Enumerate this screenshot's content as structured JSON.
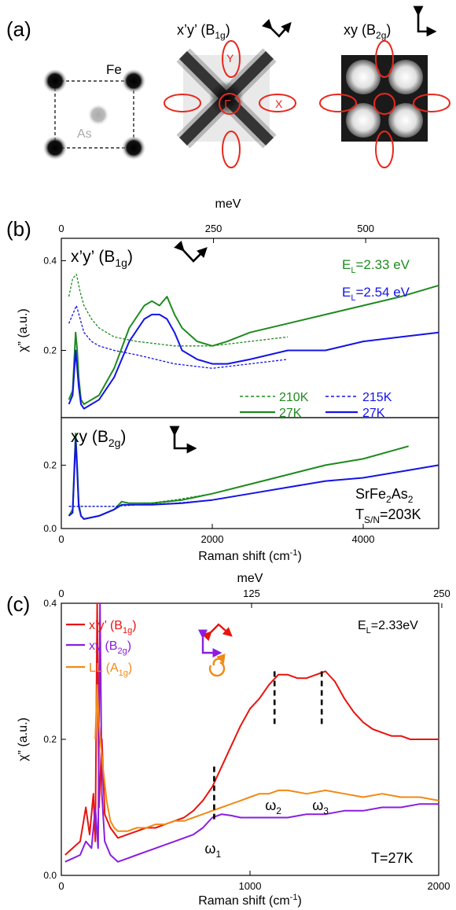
{
  "panel_a": {
    "label": "(a)",
    "lattice": {
      "fe_label": "Fe",
      "as_label": "As"
    },
    "map_b1g": {
      "title_main": "x’y’ (B",
      "title_sub": "1g",
      "title_end": ")",
      "pocket_y": "Y",
      "pocket_x": "X",
      "pocket_gamma": "Γ"
    },
    "map_b2g": {
      "title_main": "xy (B",
      "title_sub": "2g",
      "title_end": ")"
    },
    "arrow_color": "#000000",
    "pocket_color": "#e8281e"
  },
  "colors": {
    "green": "#1f8a1f",
    "blue": "#1414e6",
    "red": "#e8140f",
    "purple": "#8a1ee0",
    "orange": "#f08a14"
  },
  "chart_data": [
    {
      "id": "b_top",
      "type": "line",
      "panel_label": "(b)",
      "top_axis_label": "meV",
      "top_ticks": [
        "0",
        "250",
        "500"
      ],
      "ylabel": "χ” (a.u.)",
      "ylim": [
        0.05,
        0.45
      ],
      "xlim": [
        0,
        5000
      ],
      "yticks": [
        "0.2",
        "0.4"
      ],
      "title_main": "x’y’ (B",
      "title_sub": "1g",
      "title_end": ")",
      "annotations": [
        {
          "text": "E",
          "sub": "L",
          "rest": "=2.33 eV",
          "color": "green"
        },
        {
          "text": "E",
          "sub": "L",
          "rest": "=2.54 eV",
          "color": "blue"
        }
      ],
      "legend": [
        {
          "label": "210K",
          "color": "green",
          "dash": true
        },
        {
          "label": "215K",
          "color": "blue",
          "dash": true
        },
        {
          "label": "27K",
          "color": "green",
          "dash": false
        },
        {
          "label": "27K",
          "color": "blue",
          "dash": false
        }
      ],
      "series": [
        {
          "color": "green",
          "dash": false,
          "x": [
            100,
            150,
            190,
            210,
            230,
            260,
            300,
            400,
            500,
            700,
            900,
            1100,
            1200,
            1300,
            1400,
            1500,
            1600,
            1800,
            2000,
            2200,
            2500,
            3000,
            3500,
            4000,
            4500,
            5000
          ],
          "y": [
            0.09,
            0.11,
            0.24,
            0.2,
            0.14,
            0.09,
            0.08,
            0.09,
            0.1,
            0.16,
            0.25,
            0.3,
            0.31,
            0.3,
            0.32,
            0.28,
            0.25,
            0.22,
            0.21,
            0.22,
            0.24,
            0.26,
            0.28,
            0.3,
            0.32,
            0.345
          ]
        },
        {
          "color": "blue",
          "dash": false,
          "x": [
            100,
            150,
            190,
            210,
            230,
            260,
            300,
            400,
            500,
            700,
            900,
            1100,
            1200,
            1300,
            1400,
            1500,
            1600,
            1800,
            2000,
            2200,
            2500,
            3000,
            3500,
            4000,
            4500,
            5000
          ],
          "y": [
            0.08,
            0.1,
            0.2,
            0.16,
            0.12,
            0.08,
            0.07,
            0.08,
            0.09,
            0.14,
            0.22,
            0.27,
            0.28,
            0.28,
            0.27,
            0.24,
            0.2,
            0.18,
            0.17,
            0.17,
            0.18,
            0.2,
            0.2,
            0.22,
            0.23,
            0.24
          ]
        },
        {
          "color": "green",
          "dash": true,
          "x": [
            100,
            150,
            200,
            250,
            300,
            400,
            500,
            700,
            1000,
            1500,
            2000,
            2500,
            3000
          ],
          "y": [
            0.32,
            0.36,
            0.37,
            0.33,
            0.3,
            0.27,
            0.25,
            0.23,
            0.22,
            0.21,
            0.21,
            0.22,
            0.23
          ]
        },
        {
          "color": "blue",
          "dash": true,
          "x": [
            100,
            150,
            200,
            250,
            300,
            400,
            500,
            700,
            1000,
            1500,
            2000,
            2500,
            3000
          ],
          "y": [
            0.26,
            0.28,
            0.3,
            0.27,
            0.24,
            0.22,
            0.21,
            0.2,
            0.19,
            0.17,
            0.16,
            0.17,
            0.18
          ]
        }
      ]
    },
    {
      "id": "b_bottom",
      "type": "line",
      "xlabel": "Raman shift (cm⁻¹)",
      "xlabel_main": "Raman shift (cm",
      "xlabel_sup": "-1",
      "xlabel_end": ")",
      "xticks": [
        "0",
        "2000",
        "4000"
      ],
      "ylim": [
        0.0,
        0.35
      ],
      "xlim": [
        0,
        5000
      ],
      "yticks": [
        "0.0",
        "0.2"
      ],
      "title_main": "xy (B",
      "title_sub": "2g",
      "title_end": ")",
      "material_main": "SrFe",
      "material_sub1": "2",
      "material_mid": "As",
      "material_sub2": "2",
      "tsn_main": "T",
      "tsn_sub": "S/N",
      "tsn_end": "=203K",
      "series": [
        {
          "color": "green",
          "dash": false,
          "x": [
            100,
            150,
            190,
            210,
            230,
            260,
            300,
            400,
            500,
            700,
            800,
            900,
            1200,
            1600,
            2000,
            2500,
            3000,
            3500,
            4000,
            4600
          ],
          "y": [
            0.04,
            0.06,
            0.3,
            0.2,
            0.08,
            0.04,
            0.03,
            0.035,
            0.04,
            0.06,
            0.085,
            0.08,
            0.08,
            0.09,
            0.11,
            0.14,
            0.17,
            0.2,
            0.22,
            0.26
          ]
        },
        {
          "color": "blue",
          "dash": false,
          "x": [
            100,
            150,
            190,
            210,
            230,
            260,
            300,
            400,
            500,
            700,
            800,
            900,
            1200,
            1600,
            2000,
            2500,
            3000,
            3500,
            4000,
            4500,
            5000
          ],
          "y": [
            0.04,
            0.05,
            0.28,
            0.18,
            0.07,
            0.04,
            0.03,
            0.035,
            0.04,
            0.06,
            0.075,
            0.075,
            0.075,
            0.08,
            0.09,
            0.11,
            0.13,
            0.15,
            0.16,
            0.18,
            0.2
          ]
        },
        {
          "color": "green",
          "dash": true,
          "x": [
            100,
            200,
            400,
            700,
            1000,
            1500,
            2000,
            2500,
            3000,
            3500,
            4000,
            4600
          ],
          "y": [
            0.07,
            0.07,
            0.07,
            0.07,
            0.075,
            0.09,
            0.11,
            0.14,
            0.17,
            0.2,
            0.22,
            0.26
          ]
        },
        {
          "color": "blue",
          "dash": true,
          "x": [
            100,
            200,
            400,
            700,
            1000,
            1500,
            2000,
            2500,
            3000,
            3500,
            4000,
            4500,
            5000
          ],
          "y": [
            0.07,
            0.07,
            0.07,
            0.07,
            0.075,
            0.08,
            0.09,
            0.11,
            0.13,
            0.15,
            0.16,
            0.18,
            0.2
          ]
        }
      ]
    },
    {
      "id": "c",
      "type": "line",
      "panel_label": "(c)",
      "top_axis_label": "meV",
      "top_ticks": [
        "0",
        "125",
        "250"
      ],
      "ylabel": "χ” (a.u.)",
      "xlabel_main": "Raman shift (cm",
      "xlabel_sup": "-1",
      "xlabel_end": ")",
      "xticks": [
        "0",
        "1000",
        "2000"
      ],
      "yticks": [
        "0.0",
        "0.2",
        "0.4"
      ],
      "xlim": [
        0,
        2000
      ],
      "ylim": [
        0.0,
        0.4
      ],
      "el_text": "E",
      "el_sub": "L",
      "el_rest": "=2.33eV",
      "temp_text": "T=27K",
      "legend": [
        {
          "main": "x’y’ (B",
          "sub": "1g",
          "end": ")",
          "color": "red"
        },
        {
          "main": "xy (B",
          "sub": "2g",
          "end": ")",
          "color": "purple"
        },
        {
          "main": "LL (A",
          "sub": "1g",
          "end": ")",
          "color": "orange"
        }
      ],
      "omega_labels": [
        {
          "main": "ω",
          "sub": "1",
          "x": 810
        },
        {
          "main": "ω",
          "sub": "2",
          "x": 1130
        },
        {
          "main": "ω",
          "sub": "3",
          "x": 1380
        }
      ],
      "series": [
        {
          "color": "red",
          "x": [
            20,
            60,
            100,
            130,
            150,
            170,
            180,
            190,
            200,
            215,
            230,
            260,
            300,
            350,
            400,
            450,
            500,
            550,
            600,
            650,
            700,
            750,
            800,
            850,
            900,
            950,
            1000,
            1050,
            1100,
            1150,
            1200,
            1250,
            1300,
            1350,
            1400,
            1450,
            1500,
            1550,
            1600,
            1650,
            1700,
            1750,
            1800,
            1850,
            1900,
            1950,
            2000
          ],
          "y": [
            0.03,
            0.04,
            0.05,
            0.1,
            0.06,
            0.12,
            0.05,
            0.4,
            0.1,
            0.2,
            0.09,
            0.07,
            0.055,
            0.06,
            0.065,
            0.07,
            0.07,
            0.075,
            0.08,
            0.085,
            0.095,
            0.11,
            0.13,
            0.16,
            0.19,
            0.22,
            0.245,
            0.26,
            0.28,
            0.295,
            0.295,
            0.29,
            0.29,
            0.295,
            0.3,
            0.285,
            0.26,
            0.24,
            0.225,
            0.215,
            0.21,
            0.205,
            0.205,
            0.2,
            0.2,
            0.2,
            0.2
          ]
        },
        {
          "color": "purple",
          "x": [
            20,
            60,
            100,
            130,
            160,
            180,
            195,
            205,
            215,
            230,
            260,
            300,
            350,
            400,
            450,
            500,
            550,
            600,
            650,
            700,
            750,
            800,
            850,
            900,
            950,
            1000,
            1100,
            1200,
            1300,
            1400,
            1500,
            1600,
            1700,
            1800,
            1900,
            2000
          ],
          "y": [
            0.02,
            0.025,
            0.03,
            0.05,
            0.04,
            0.1,
            0.04,
            0.4,
            0.12,
            0.05,
            0.03,
            0.02,
            0.025,
            0.03,
            0.035,
            0.04,
            0.045,
            0.05,
            0.055,
            0.06,
            0.07,
            0.085,
            0.09,
            0.088,
            0.085,
            0.085,
            0.085,
            0.085,
            0.09,
            0.09,
            0.095,
            0.095,
            0.1,
            0.1,
            0.105,
            0.105
          ]
        },
        {
          "color": "orange",
          "x": [
            180,
            190,
            200,
            220,
            240,
            260,
            280,
            300,
            350,
            400,
            450,
            500,
            550,
            600,
            650,
            700,
            750,
            800,
            850,
            900,
            950,
            1000,
            1050,
            1100,
            1150,
            1200,
            1300,
            1400,
            1500,
            1600,
            1700,
            1800,
            1900,
            2000
          ],
          "y": [
            0.2,
            0.28,
            0.22,
            0.16,
            0.11,
            0.08,
            0.07,
            0.065,
            0.065,
            0.07,
            0.07,
            0.075,
            0.075,
            0.08,
            0.08,
            0.085,
            0.09,
            0.095,
            0.1,
            0.105,
            0.11,
            0.115,
            0.12,
            0.12,
            0.125,
            0.125,
            0.12,
            0.125,
            0.12,
            0.115,
            0.12,
            0.115,
            0.115,
            0.11
          ]
        }
      ]
    }
  ]
}
